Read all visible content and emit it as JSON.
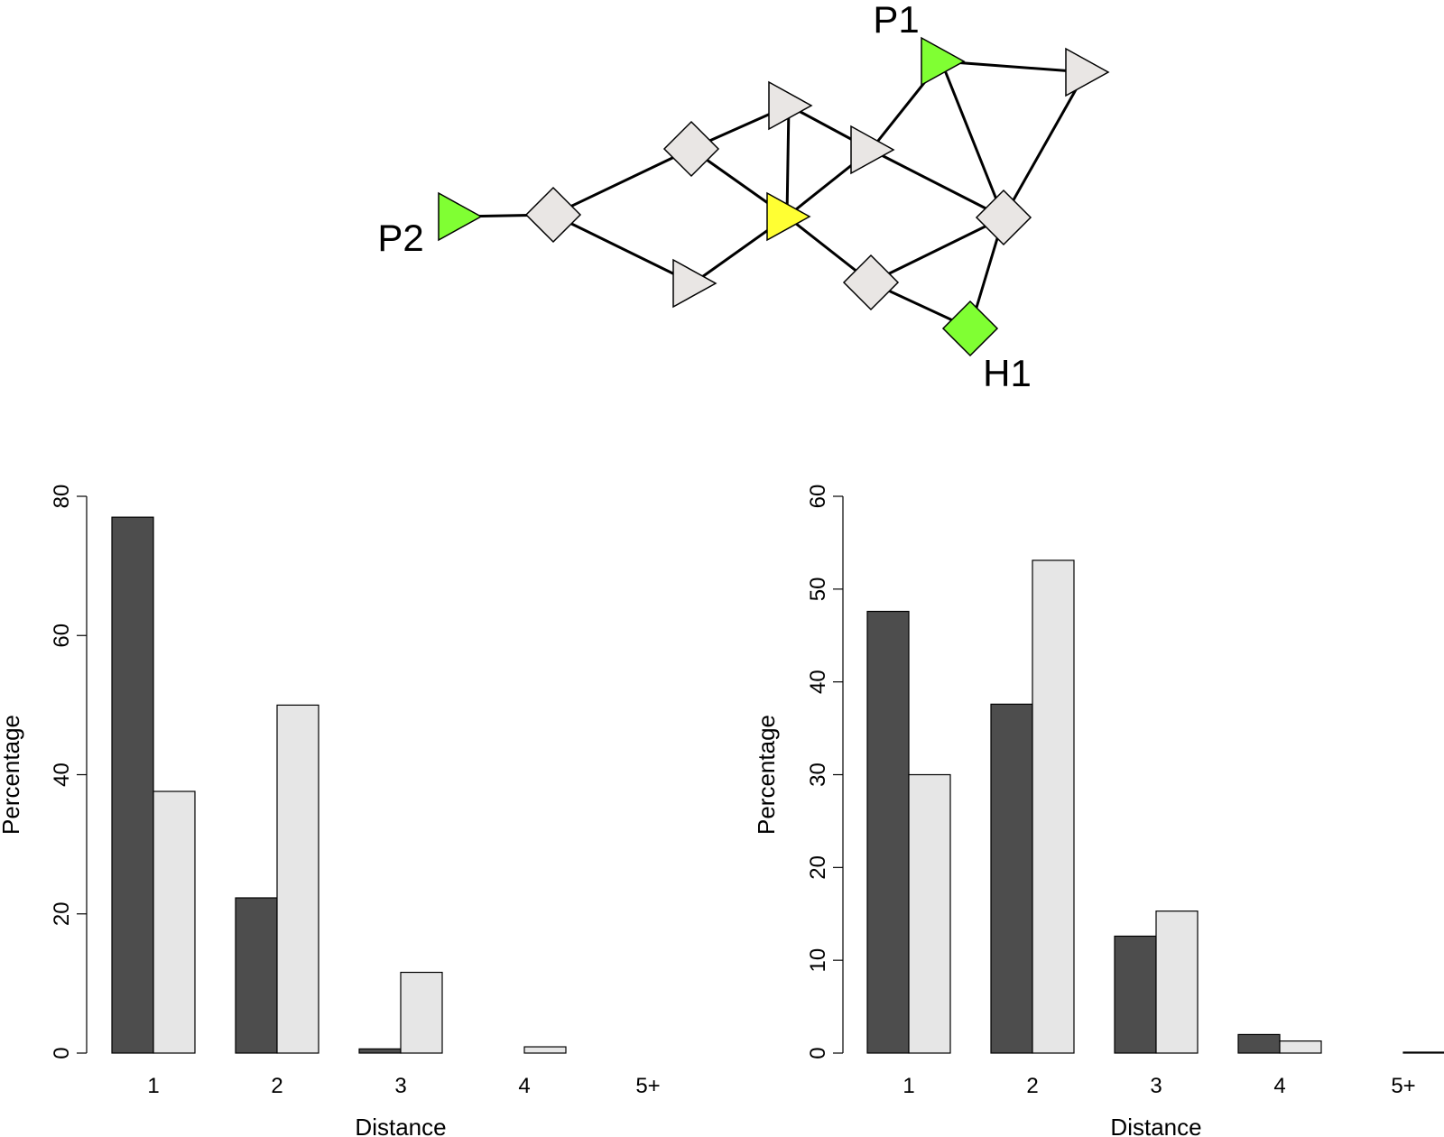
{
  "network": {
    "nodes": [
      {
        "id": "P1",
        "shape": "triangle",
        "color": "#80ff33",
        "label": "P1"
      },
      {
        "id": "P2",
        "shape": "triangle",
        "color": "#80ff33",
        "label": "P2"
      },
      {
        "id": "H1",
        "shape": "diamond",
        "color": "#80ff33",
        "label": "H1"
      },
      {
        "id": "C",
        "shape": "triangle",
        "color": "#ffff33",
        "label": ""
      },
      {
        "id": "D1",
        "shape": "diamond",
        "color": "#e9e6e4",
        "label": ""
      },
      {
        "id": "D2",
        "shape": "diamond",
        "color": "#e9e6e4",
        "label": ""
      },
      {
        "id": "D3",
        "shape": "diamond",
        "color": "#e9e6e4",
        "label": ""
      },
      {
        "id": "D4",
        "shape": "diamond",
        "color": "#e9e6e4",
        "label": ""
      },
      {
        "id": "T1",
        "shape": "triangle",
        "color": "#e9e6e4",
        "label": ""
      },
      {
        "id": "T2",
        "shape": "triangle",
        "color": "#e9e6e4",
        "label": ""
      },
      {
        "id": "T3",
        "shape": "triangle",
        "color": "#e9e6e4",
        "label": ""
      },
      {
        "id": "T4",
        "shape": "triangle",
        "color": "#e9e6e4",
        "label": ""
      }
    ],
    "edges": [
      [
        "P2",
        "D1"
      ],
      [
        "D1",
        "D2"
      ],
      [
        "D1",
        "T3"
      ],
      [
        "D2",
        "T1"
      ],
      [
        "T1",
        "C"
      ],
      [
        "D2",
        "C"
      ],
      [
        "T3",
        "C"
      ],
      [
        "T1",
        "T2"
      ],
      [
        "C",
        "T2"
      ],
      [
        "C",
        "D4"
      ],
      [
        "T2",
        "P1"
      ],
      [
        "T2",
        "D3"
      ],
      [
        "P1",
        "T4"
      ],
      [
        "P1",
        "D3"
      ],
      [
        "T4",
        "D3"
      ],
      [
        "D3",
        "D4"
      ],
      [
        "D3",
        "H1"
      ],
      [
        "D4",
        "H1"
      ]
    ]
  },
  "chart_data": [
    {
      "type": "bar",
      "categories": [
        "1",
        "2",
        "3",
        "4",
        "5+"
      ],
      "series": [
        {
          "color": "#4d4d4d",
          "values": [
            77,
            22.3,
            0.6,
            0,
            0
          ]
        },
        {
          "color": "#e6e6e6",
          "values": [
            37.6,
            50,
            11.6,
            0.9,
            0
          ]
        }
      ],
      "xlabel": "Distance",
      "ylabel": "Percentage",
      "ylim": [
        0,
        80
      ],
      "yticks": [
        "0",
        "20",
        "40",
        "60",
        "80"
      ],
      "grid": false
    },
    {
      "type": "bar",
      "categories": [
        "1",
        "2",
        "3",
        "4",
        "5+"
      ],
      "series": [
        {
          "color": "#4d4d4d",
          "values": [
            47.6,
            37.6,
            12.6,
            2.0,
            0
          ]
        },
        {
          "color": "#e6e6e6",
          "values": [
            30,
            53.1,
            15.3,
            1.3,
            0.1
          ]
        }
      ],
      "xlabel": "Distance",
      "ylabel": "Percentage",
      "ylim": [
        0,
        60
      ],
      "yticks": [
        "0",
        "10",
        "20",
        "30",
        "40",
        "50",
        "60"
      ],
      "grid": false
    }
  ]
}
